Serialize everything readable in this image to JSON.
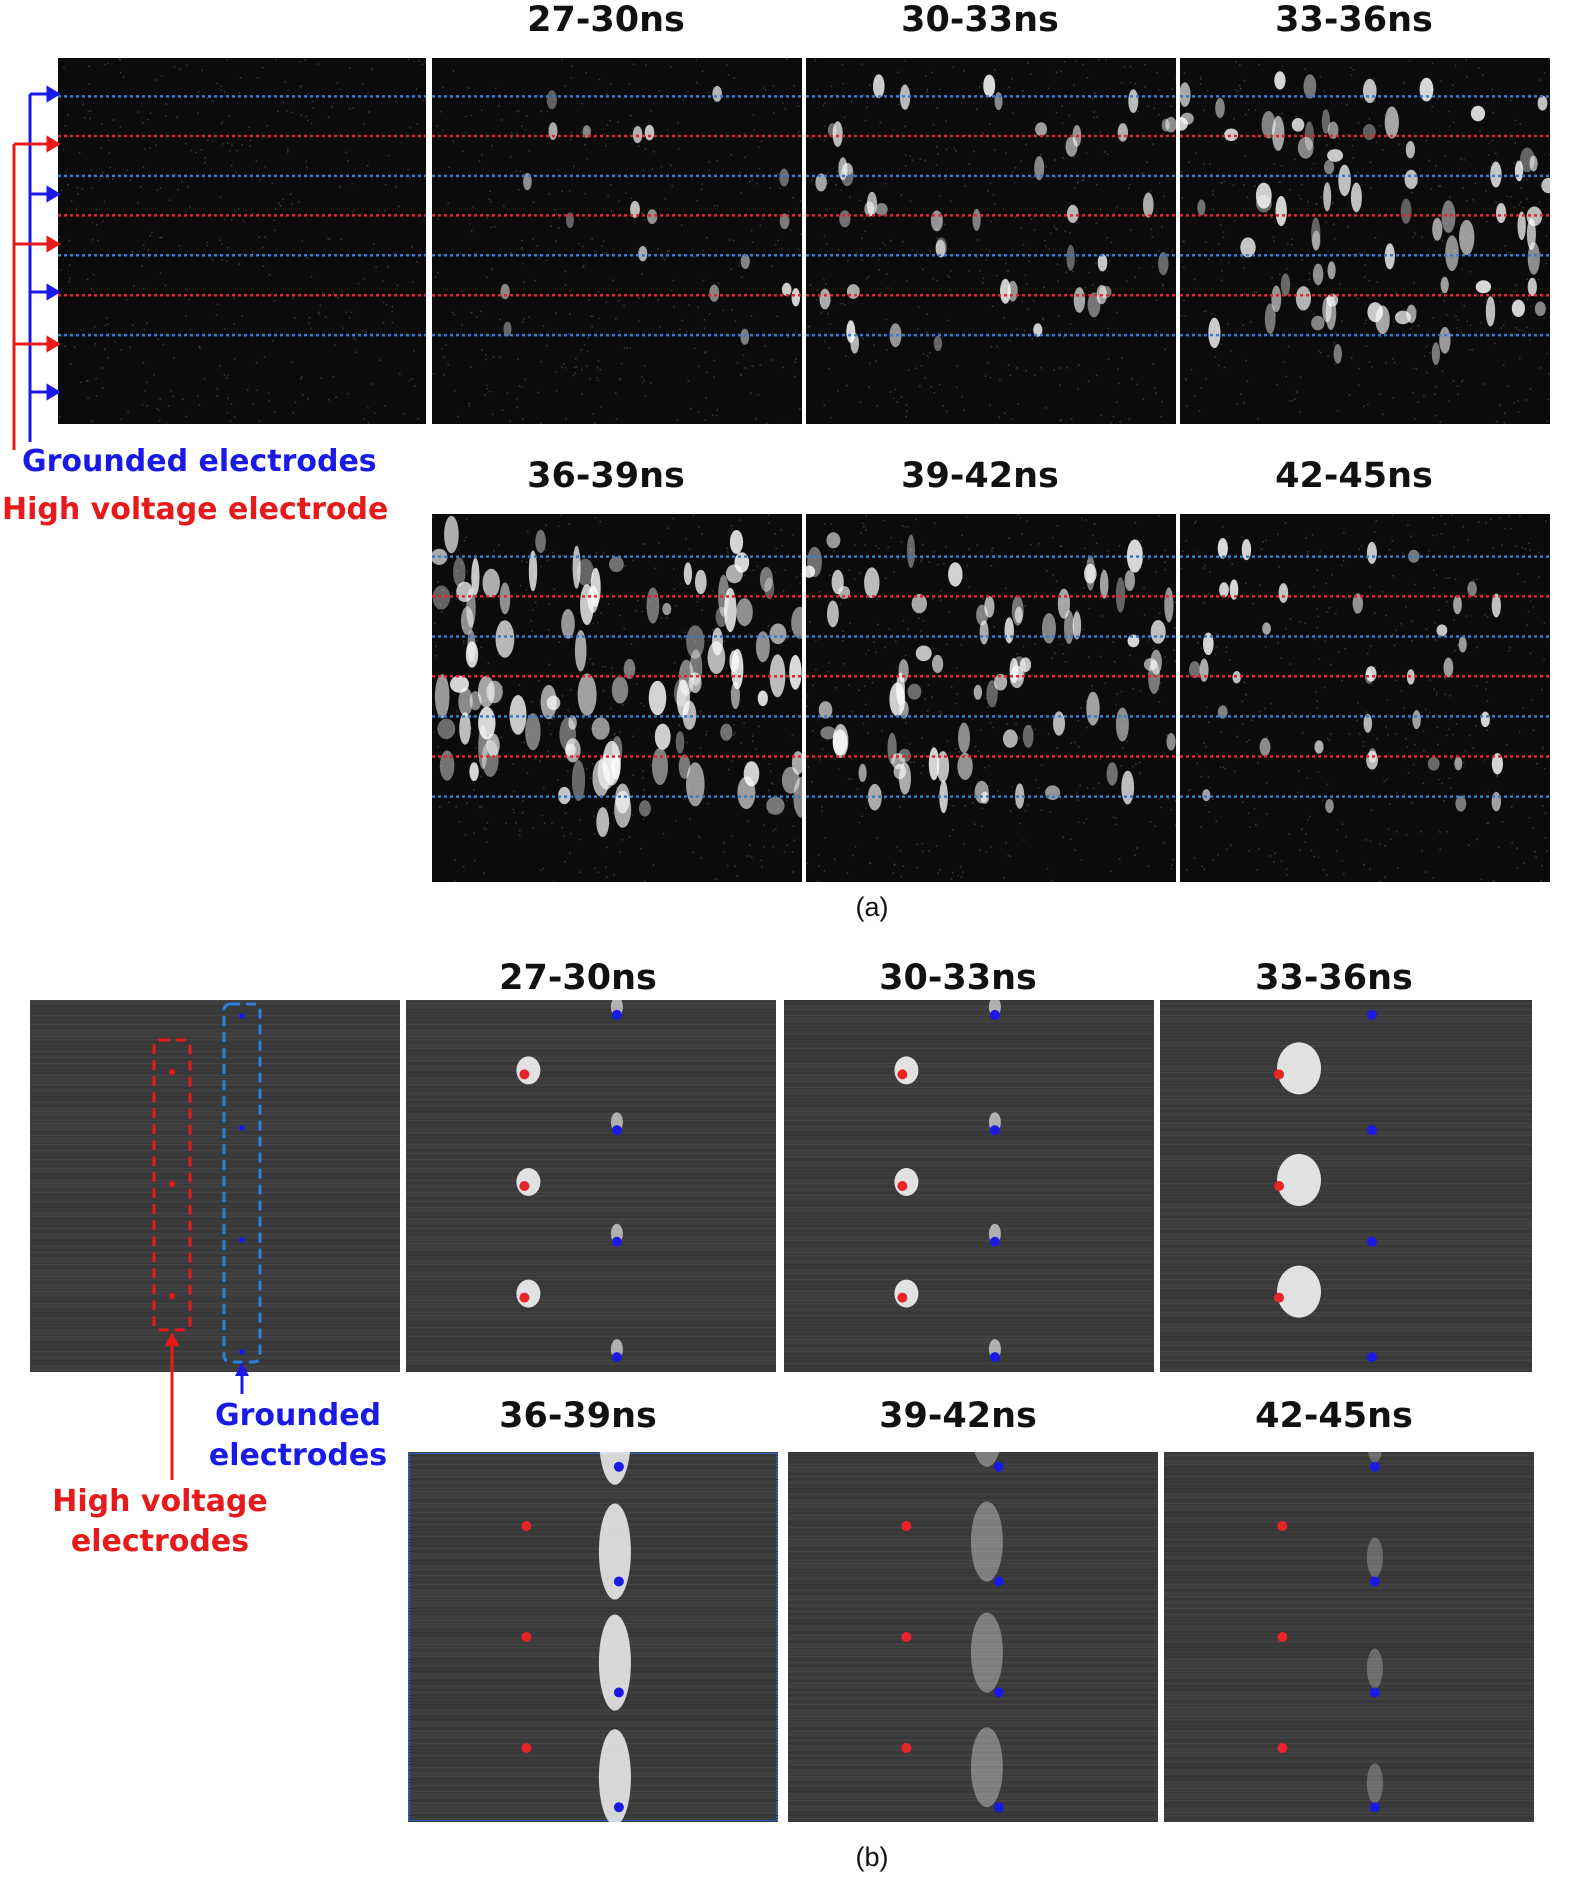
{
  "figure": {
    "part_a": {
      "caption": "(a)",
      "time_windows": [
        "27-30ns",
        "30-33ns",
        "33-36ns",
        "36-39ns",
        "39-42ns",
        "42-45ns"
      ],
      "legend": {
        "grounded": "Grounded electrodes",
        "high_voltage": "High voltage electrode"
      }
    },
    "part_b": {
      "caption": "(b)",
      "time_windows": [
        "27-30ns",
        "30-33ns",
        "33-36ns",
        "36-39ns",
        "39-42ns",
        "42-45ns"
      ],
      "legend": {
        "grounded_line1": "Grounded",
        "grounded_line2": "electrodes",
        "high_voltage_line1": "High voltage",
        "high_voltage_line2": "electrodes"
      }
    },
    "colors": {
      "grounded": "#2f7fd6",
      "high_voltage": "#e8232a",
      "legend_blue": "#1a1ae6",
      "legend_red": "#e61a1a"
    }
  }
}
